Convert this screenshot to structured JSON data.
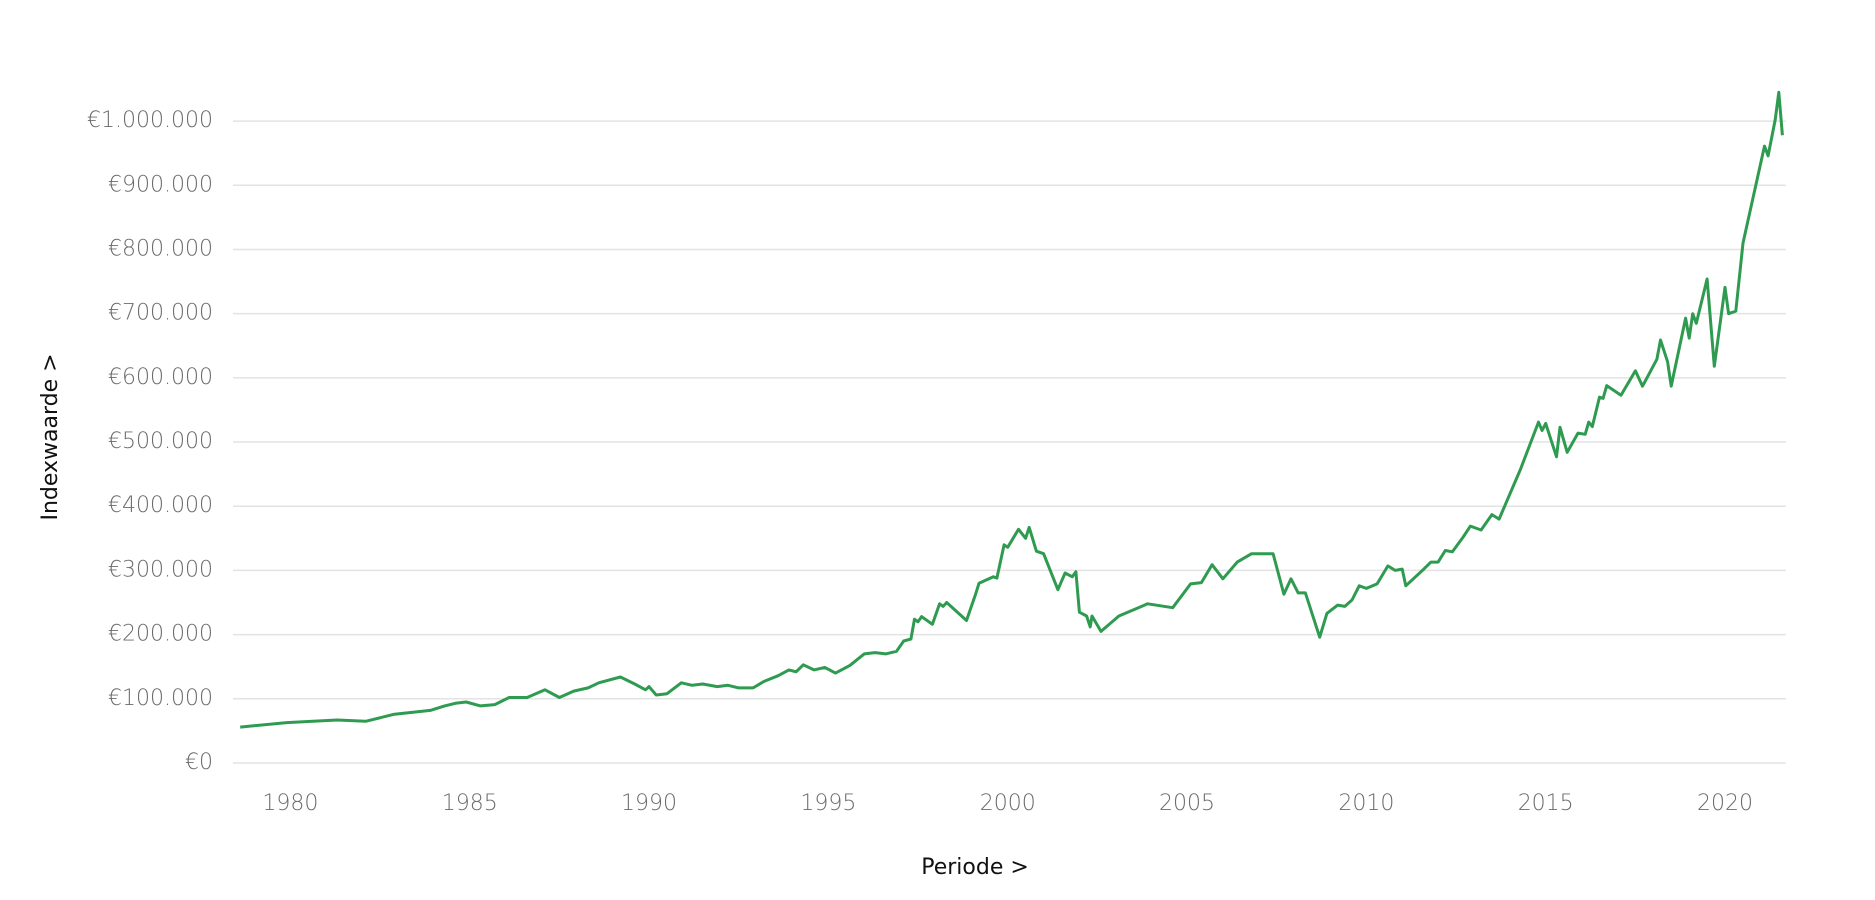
{
  "chart_data": {
    "type": "line",
    "x_label": "Periode >",
    "y_label": "Indexwaarde >",
    "xlim": [
      1978.4,
      2021.7
    ],
    "xticks": [
      1980,
      1985,
      1990,
      1995,
      2000,
      2005,
      2010,
      2015,
      2020
    ],
    "ylim": [
      0,
      1050000
    ],
    "yticks": [
      {
        "value": 0,
        "label": "€0"
      },
      {
        "value": 100000,
        "label": "€100.000"
      },
      {
        "value": 200000,
        "label": "€200.000"
      },
      {
        "value": 300000,
        "label": "€300.000"
      },
      {
        "value": 400000,
        "label": "€400.000"
      },
      {
        "value": 500000,
        "label": "€500.000"
      },
      {
        "value": 600000,
        "label": "€600.000"
      },
      {
        "value": 700000,
        "label": "€700.000"
      },
      {
        "value": 800000,
        "label": "€800.000"
      },
      {
        "value": 900000,
        "label": "€900.000"
      },
      {
        "value": 1000000,
        "label": "€1.000.000"
      }
    ],
    "grid": true,
    "x": [
      1978.6,
      1979.9,
      1981.3,
      1982.1,
      1982.9,
      1983.9,
      1984.3,
      1984.6,
      1984.9,
      1985.3,
      1985.7,
      1986.1,
      1986.6,
      1987.1,
      1987.5,
      1987.9,
      1988.3,
      1988.6,
      1989.2,
      1989.6,
      1989.9,
      1990.0,
      1990.2,
      1990.5,
      1990.9,
      1991.2,
      1991.5,
      1991.9,
      1992.2,
      1992.5,
      1992.9,
      1993.2,
      1993.6,
      1993.9,
      1994.1,
      1994.3,
      1994.6,
      1994.9,
      1995.2,
      1995.6,
      1996.0,
      1996.3,
      1996.6,
      1996.9,
      1997.1,
      1997.3,
      1997.4,
      1997.5,
      1997.6,
      1997.9,
      1998.1,
      1998.2,
      1998.3,
      1998.85,
      1999.1,
      1999.2,
      1999.6,
      1999.7,
      1999.9,
      2000.0,
      2000.3,
      2000.5,
      2000.6,
      2000.8,
      2001.0,
      2001.4,
      2001.6,
      2001.8,
      2001.9,
      2002.0,
      2002.2,
      2002.3,
      2002.35,
      2002.6,
      2003.1,
      2003.9,
      2004.6,
      2005.1,
      2005.4,
      2005.7,
      2006.0,
      2006.4,
      2006.8,
      2007.4,
      2007.7,
      2007.9,
      2008.1,
      2008.3,
      2008.7,
      2008.9,
      2009.2,
      2009.4,
      2009.6,
      2009.8,
      2010.0,
      2010.3,
      2010.6,
      2010.8,
      2011.0,
      2011.1,
      2011.6,
      2011.8,
      2012.0,
      2012.2,
      2012.4,
      2012.7,
      2012.9,
      2013.2,
      2013.5,
      2013.7,
      2014.3,
      2014.8,
      2014.9,
      2015.0,
      2015.3,
      2015.4,
      2015.6,
      2015.9,
      2016.1,
      2016.2,
      2016.3,
      2016.5,
      2016.6,
      2016.7,
      2017.1,
      2017.5,
      2017.7,
      2018.1,
      2018.2,
      2018.4,
      2018.5,
      2018.9,
      2019.0,
      2019.1,
      2019.2,
      2019.5,
      2019.7,
      2020.0,
      2020.1,
      2020.3,
      2020.5,
      2021.1,
      2021.2,
      2021.4,
      2021.5,
      2021.6
    ],
    "series": [
      {
        "name": "Indexwaarde",
        "color": "#2e9b50",
        "values": [
          56000,
          63000,
          67000,
          65000,
          76000,
          82000,
          89000,
          93000,
          95000,
          89000,
          91000,
          102000,
          102000,
          114000,
          102000,
          112000,
          117000,
          125000,
          134000,
          123000,
          114000,
          119000,
          106000,
          108000,
          125000,
          121000,
          123000,
          119000,
          121000,
          117000,
          117000,
          127000,
          136000,
          145000,
          142000,
          153000,
          145000,
          149000,
          140000,
          152000,
          170000,
          172000,
          170000,
          174000,
          190000,
          193000,
          224000,
          220000,
          228000,
          216000,
          248000,
          244000,
          250000,
          222000,
          262000,
          280000,
          290000,
          288000,
          340000,
          336000,
          364000,
          350000,
          367000,
          330000,
          326000,
          270000,
          296000,
          290000,
          298000,
          235000,
          229000,
          212000,
          229000,
          205000,
          229000,
          248000,
          242000,
          279000,
          281000,
          309000,
          287000,
          313000,
          326000,
          326000,
          263000,
          287000,
          265000,
          265000,
          196000,
          233000,
          246000,
          244000,
          254000,
          276000,
          272000,
          279000,
          307000,
          300000,
          302000,
          276000,
          302000,
          313000,
          313000,
          331000,
          329000,
          352000,
          369000,
          363000,
          387000,
          380000,
          458000,
          531000,
          518000,
          529000,
          477000,
          523000,
          484000,
          514000,
          512000,
          531000,
          524000,
          570000,
          568000,
          588000,
          573000,
          611000,
          587000,
          629000,
          659000,
          625000,
          587000,
          693000,
          662000,
          700000,
          685000,
          754000,
          618000,
          741000,
          700000,
          704000,
          810000,
          961000,
          946000,
          1002000,
          1045000,
          978000
        ]
      }
    ]
  }
}
